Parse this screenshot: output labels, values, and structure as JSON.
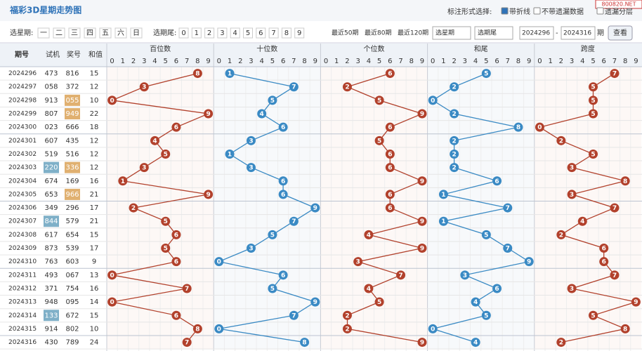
{
  "header": {
    "title": "福彩3D星期走势图",
    "watermark": "800820.NET",
    "mark_label": "标注形式选择:",
    "options": [
      "带折线",
      "不带遗漏数据",
      "遗漏分层"
    ],
    "option_checked": [
      true,
      false,
      false
    ]
  },
  "filter": {
    "weekday_label": "选星期:",
    "weekdays": [
      "一",
      "二",
      "三",
      "四",
      "五",
      "六",
      "日"
    ],
    "tail_label": "选期尾:",
    "tails": [
      "0",
      "1",
      "2",
      "3",
      "4",
      "5",
      "6",
      "7",
      "8",
      "9"
    ],
    "recent": [
      "最近50期",
      "最近80期",
      "最近120期"
    ],
    "selects": [
      "选星期",
      "选期尾"
    ],
    "from": "2024296",
    "dash": "-",
    "to": "2024316",
    "unit": "期",
    "button": "查看"
  },
  "table": {
    "columns": [
      "期号",
      "试机",
      "奖号",
      "和值"
    ],
    "digits": [
      "0",
      "1",
      "2",
      "3",
      "4",
      "5",
      "6",
      "7",
      "8",
      "9"
    ],
    "periods": [
      "2024296",
      "2024297",
      "2024298",
      "2024299",
      "2024300",
      "2024301",
      "2024302",
      "2024303",
      "2024304",
      "2024305",
      "2024306",
      "2024307",
      "2024308",
      "2024309",
      "2024310",
      "2024311",
      "2024312",
      "2024313",
      "2024314",
      "2024315",
      "2024316"
    ],
    "trials": [
      "473",
      "058",
      "913",
      "807",
      "023",
      "607",
      "519",
      "220",
      "674",
      "653",
      "349",
      "844",
      "617",
      "873",
      "763",
      "493",
      "371",
      "948",
      "133",
      "914",
      "430"
    ],
    "trial_highlight": [
      false,
      false,
      false,
      false,
      false,
      false,
      false,
      true,
      false,
      false,
      false,
      true,
      false,
      false,
      false,
      false,
      false,
      false,
      true,
      false,
      false
    ],
    "prizes": [
      "816",
      "372",
      "055",
      "949",
      "666",
      "435",
      "516",
      "336",
      "169",
      "966",
      "296",
      "579",
      "654",
      "539",
      "603",
      "067",
      "754",
      "095",
      "672",
      "802",
      "789"
    ],
    "prize_highlight": [
      false,
      false,
      true,
      true,
      false,
      false,
      false,
      true,
      false,
      true,
      false,
      false,
      false,
      false,
      false,
      false,
      false,
      false,
      false,
      false,
      false
    ],
    "sums": [
      15,
      12,
      10,
      22,
      18,
      12,
      12,
      12,
      16,
      21,
      17,
      21,
      15,
      17,
      9,
      13,
      16,
      14,
      15,
      10,
      24
    ],
    "zones": [
      {
        "name": "百位数",
        "color": "#b2412c",
        "values": [
          8,
          3,
          0,
          9,
          6,
          4,
          5,
          3,
          1,
          9,
          2,
          5,
          6,
          5,
          6,
          0,
          7,
          0,
          6,
          8,
          7
        ]
      },
      {
        "name": "十位数",
        "color": "#3a8ac4",
        "values": [
          1,
          7,
          5,
          4,
          6,
          3,
          1,
          3,
          6,
          6,
          9,
          7,
          5,
          3,
          0,
          6,
          5,
          9,
          7,
          0,
          8
        ]
      },
      {
        "name": "个位数",
        "color": "#b2412c",
        "values": [
          6,
          2,
          5,
          9,
          6,
          5,
          6,
          6,
          9,
          6,
          6,
          9,
          4,
          9,
          3,
          7,
          4,
          5,
          2,
          2,
          9
        ]
      },
      {
        "name": "和尾",
        "color": "#3a8ac4",
        "values": [
          5,
          2,
          0,
          2,
          8,
          2,
          2,
          2,
          6,
          1,
          7,
          1,
          5,
          7,
          9,
          3,
          6,
          4,
          5,
          0,
          4
        ]
      },
      {
        "name": "跨度",
        "color": "#b2412c",
        "values": [
          7,
          5,
          5,
          5,
          0,
          2,
          5,
          3,
          8,
          3,
          7,
          4,
          2,
          6,
          6,
          7,
          3,
          9,
          5,
          8,
          2
        ]
      }
    ]
  }
}
